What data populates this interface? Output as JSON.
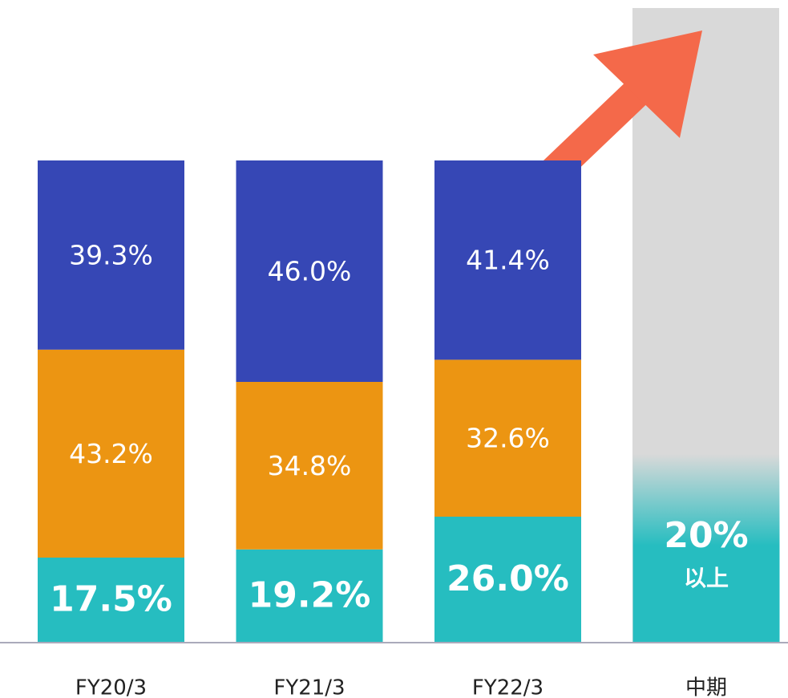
{
  "chart_data": {
    "type": "stacked_bar",
    "categories": [
      "FY20/3",
      "FY21/3",
      "FY22/3",
      "中期"
    ],
    "series": [
      {
        "color": "#26bdc0",
        "values": [
          17.5,
          19.2,
          26.0,
          20
        ],
        "value_labels": [
          "17.5%",
          "19.2%",
          "26.0%",
          "20%"
        ]
      },
      {
        "color": "#ec9512",
        "values": [
          43.2,
          34.8,
          32.6,
          null
        ],
        "value_labels": [
          "43.2%",
          "34.8%",
          "32.6%",
          null
        ]
      },
      {
        "color": "#3647b5",
        "values": [
          39.3,
          46.0,
          41.4,
          null
        ],
        "value_labels": [
          "39.3%",
          "46.0%",
          "41.4%",
          null
        ]
      }
    ],
    "annotation": "以上",
    "ylim": [
      0,
      100
    ]
  }
}
